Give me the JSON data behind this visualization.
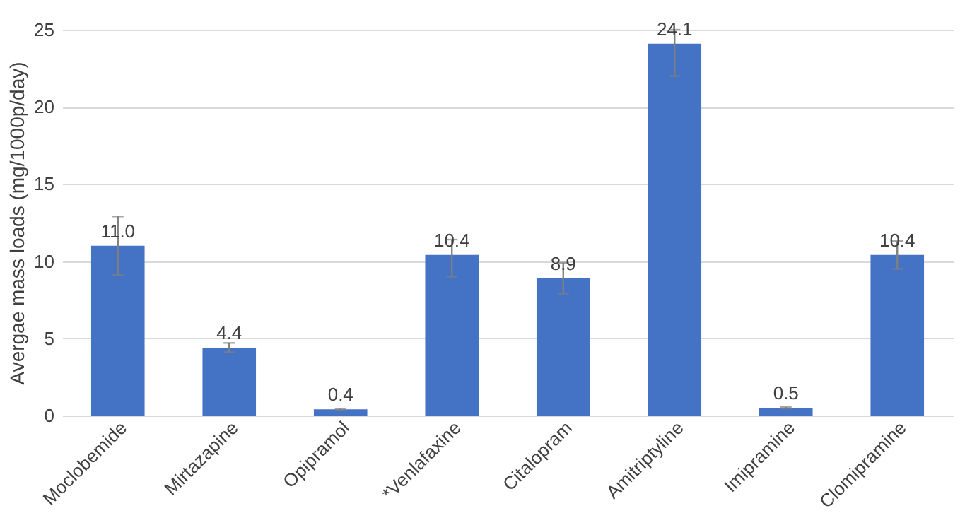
{
  "chart_data": {
    "type": "bar",
    "ylabel": "Avergae mass loads (mg/1000p/day)",
    "categories": [
      "Moclobemide",
      "Mirtazapine",
      "Opipramol",
      "*Venlafaxine",
      "Citalopram",
      "Amitriptyline",
      "Imipramine",
      "Clomipramine"
    ],
    "values": [
      11.0,
      4.4,
      0.4,
      10.4,
      8.9,
      24.1,
      0.5,
      10.4
    ],
    "errors": [
      1.9,
      0.3,
      0.05,
      [
        9.0,
        11.4
      ],
      1.0,
      [
        22.0,
        25
      ],
      0.05,
      0.9
    ],
    "color": "#4472c4",
    "value_labels": [
      "11.0",
      "4.4",
      "0.4",
      "10.4",
      "8.9",
      "24.1",
      "0.5",
      "10.4"
    ],
    "ylim": [
      0,
      25
    ],
    "yticks": [
      0,
      5,
      10,
      15,
      20,
      25
    ],
    "grid": "y"
  }
}
